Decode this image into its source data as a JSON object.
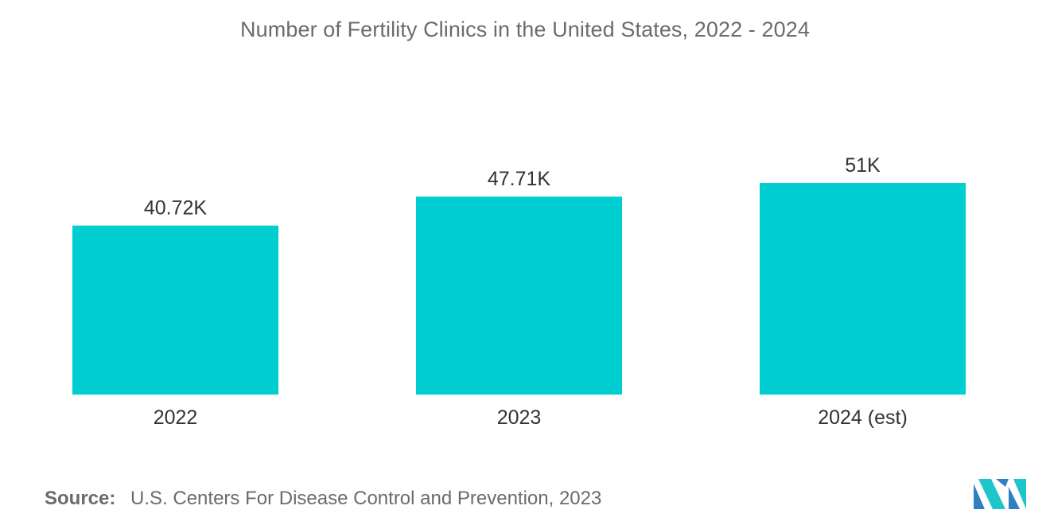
{
  "chart_data": {
    "type": "bar",
    "title": "Number of Fertility Clinics in the United States, 2022 - 2024",
    "categories": [
      "2022",
      "2023",
      "2024 (est)"
    ],
    "values": [
      40.72,
      47.71,
      51
    ],
    "value_labels": [
      "40.72K",
      "47.71K",
      "51K"
    ],
    "unit": "K",
    "xlabel": "",
    "ylabel": "",
    "ylim": [
      0,
      51
    ],
    "grid": false,
    "bar_color": "#00CED1"
  },
  "source": {
    "label": "Source:",
    "text": "U.S. Centers For Disease Control and Prevention, 2023"
  },
  "logo": {
    "icon": "mordor-intelligence-logo",
    "colors": [
      "#2f7fc1",
      "#1ec6cc"
    ]
  }
}
